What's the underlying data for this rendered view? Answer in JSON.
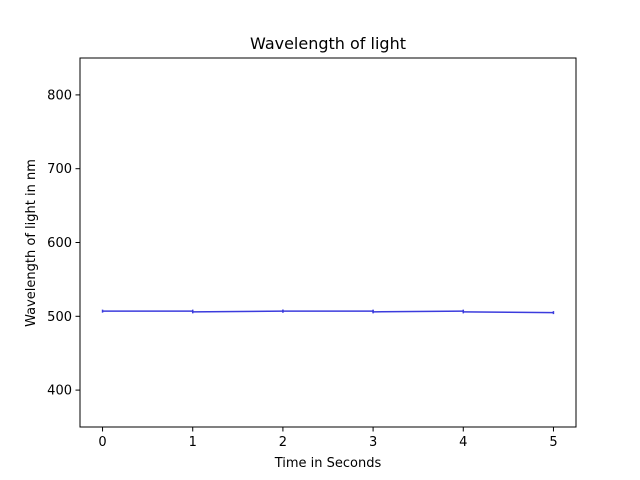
{
  "chart_data": {
    "type": "line",
    "title": "Wavelength of light",
    "xlabel": "Time in Seconds",
    "ylabel": "Wavelength of light in nm",
    "xlim": [
      -0.25,
      5.25
    ],
    "ylim": [
      350,
      850
    ],
    "xticks": [
      0,
      1,
      2,
      3,
      4,
      5
    ],
    "yticks": [
      400,
      500,
      600,
      700,
      800
    ],
    "grid": false,
    "legend": "none",
    "series": [
      {
        "color": "#3b3bdd",
        "segments": [
          {
            "x": [
              0,
              1
            ],
            "y": [
              507,
              507
            ]
          },
          {
            "x": [
              1,
              2
            ],
            "y": [
              506,
              507
            ]
          },
          {
            "x": [
              2,
              3
            ],
            "y": [
              507,
              507
            ]
          },
          {
            "x": [
              3,
              4
            ],
            "y": [
              506,
              507
            ]
          },
          {
            "x": [
              4,
              5
            ],
            "y": [
              506,
              505
            ]
          }
        ]
      }
    ]
  }
}
